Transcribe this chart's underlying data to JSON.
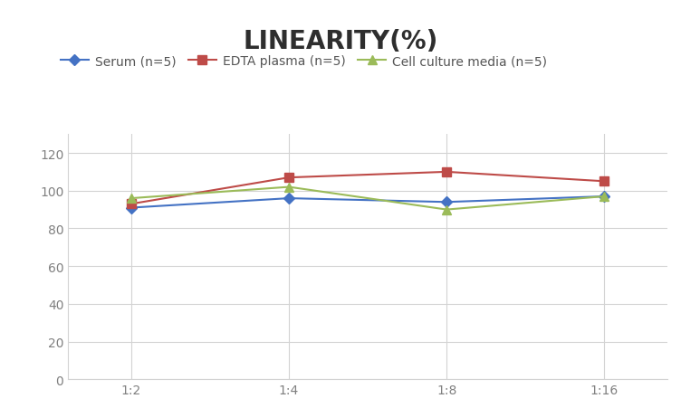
{
  "title": "LINEARITY(%)",
  "title_fontsize": 20,
  "title_fontweight": "bold",
  "x_labels": [
    "1:2",
    "1:4",
    "1:8",
    "1:16"
  ],
  "series": [
    {
      "label": "Serum (n=5)",
      "values": [
        91,
        96,
        94,
        97
      ],
      "color": "#4472C4",
      "marker": "D",
      "marker_size": 6,
      "linewidth": 1.5
    },
    {
      "label": "EDTA plasma (n=5)",
      "values": [
        93,
        107,
        110,
        105
      ],
      "color": "#BE4B48",
      "marker": "s",
      "marker_size": 7,
      "linewidth": 1.5
    },
    {
      "label": "Cell culture media (n=5)",
      "values": [
        96,
        102,
        90,
        97
      ],
      "color": "#9BBB59",
      "marker": "^",
      "marker_size": 7,
      "linewidth": 1.5
    }
  ],
  "ylim": [
    0,
    130
  ],
  "yticks": [
    0,
    20,
    40,
    60,
    80,
    100,
    120
  ],
  "background_color": "#ffffff",
  "grid_color": "#d3d3d3",
  "legend_fontsize": 10,
  "axis_fontsize": 10,
  "tick_label_color": "#808080"
}
